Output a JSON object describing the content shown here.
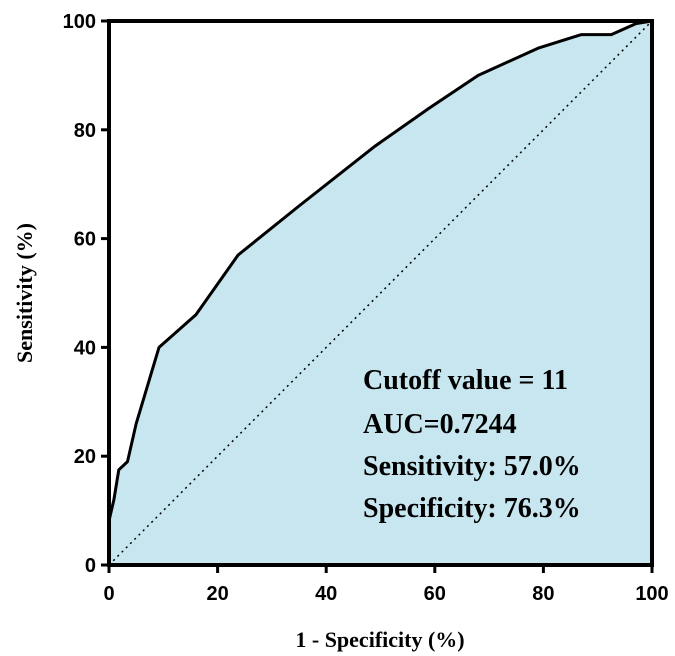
{
  "chart_data": {
    "type": "area",
    "xlabel": "1 - Specificity  (%)",
    "ylabel": "Sensitivity (%)",
    "xlim": [
      0,
      100
    ],
    "ylim": [
      0,
      100
    ],
    "xticks": [
      "0",
      "20",
      "40",
      "60",
      "80",
      "100"
    ],
    "yticks": [
      "0",
      "20",
      "40",
      "60",
      "80",
      "100"
    ],
    "grid": false,
    "fill_color": "#c7e6ef",
    "line_color": "#000000",
    "series": [
      {
        "x": [
          0,
          0.2,
          0.9,
          1.8,
          3.4,
          5.0,
          9.2,
          16.0,
          23.8,
          35.0,
          49.0,
          59.0,
          68.0,
          79.0,
          87.0,
          92.5,
          97.0,
          100.0
        ],
        "y": [
          8.0,
          9.0,
          12.0,
          17.5,
          19.0,
          26.0,
          40.0,
          46.0,
          57.0,
          66.0,
          77.0,
          84.0,
          90.0,
          95.0,
          97.5,
          97.5,
          99.5,
          100.0
        ]
      }
    ],
    "reference_line": {
      "x": [
        0,
        100
      ],
      "y": [
        0,
        100
      ],
      "style": "dotted"
    },
    "annotations": [
      "Cutoff value = 11",
      "AUC=0.7244",
      "Sensitivity: 57.0%",
      "Specificity: 76.3%"
    ]
  }
}
